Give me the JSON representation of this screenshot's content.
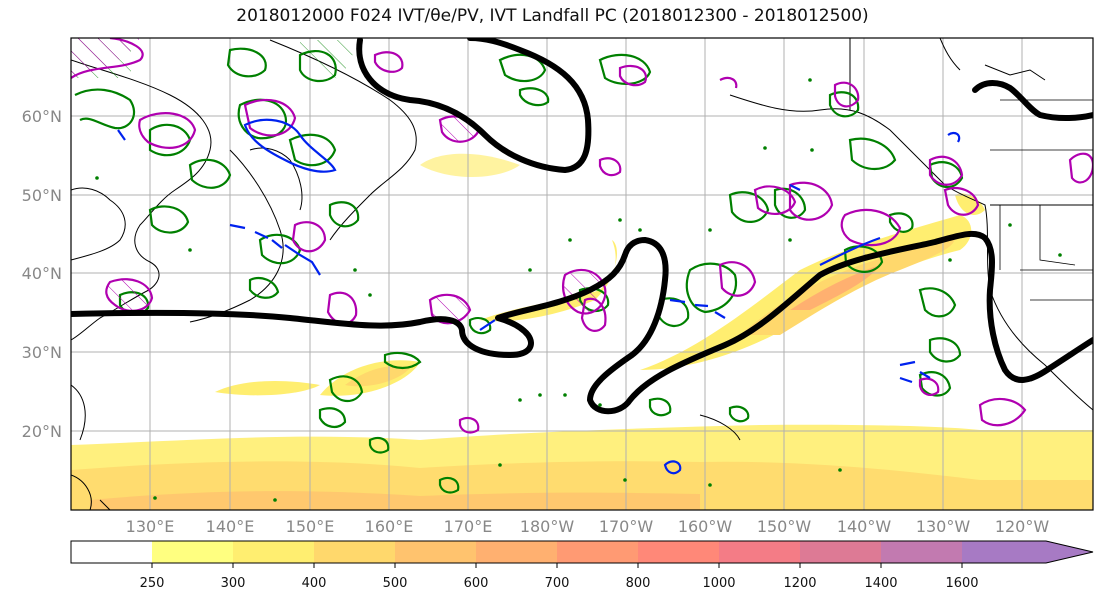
{
  "title": "2018012000 F024 IVT/θe/PV, IVT Landfall PC (2018012300 - 2018012500)",
  "map": {
    "lat_labels": [
      "60°N",
      "50°N",
      "40°N",
      "30°N",
      "20°N"
    ],
    "lon_labels": [
      "130°E",
      "140°E",
      "150°E",
      "160°E",
      "170°E",
      "180°W",
      "170°W",
      "160°W",
      "150°W",
      "140°W",
      "130°W",
      "120°W"
    ]
  },
  "colorbar": {
    "levels": [
      "250",
      "300",
      "400",
      "500",
      "600",
      "700",
      "800",
      "1000",
      "1200",
      "1400",
      "1600"
    ],
    "colors": [
      "#ffff80",
      "#ffee70",
      "#ffd86c",
      "#ffc36e",
      "#ffb070",
      "#ff9a73",
      "#ff8878",
      "#f47c86",
      "#dd7a95",
      "#c27ab0",
      "#a77ac4"
    ]
  },
  "colors": {
    "theta_e_contour": "#008000",
    "pv_contour": "#b000b0",
    "pv_negative": "#0022ee",
    "landfall_pc": "#000000",
    "coastline": "#000000",
    "grid": "#b0b0b0"
  }
}
